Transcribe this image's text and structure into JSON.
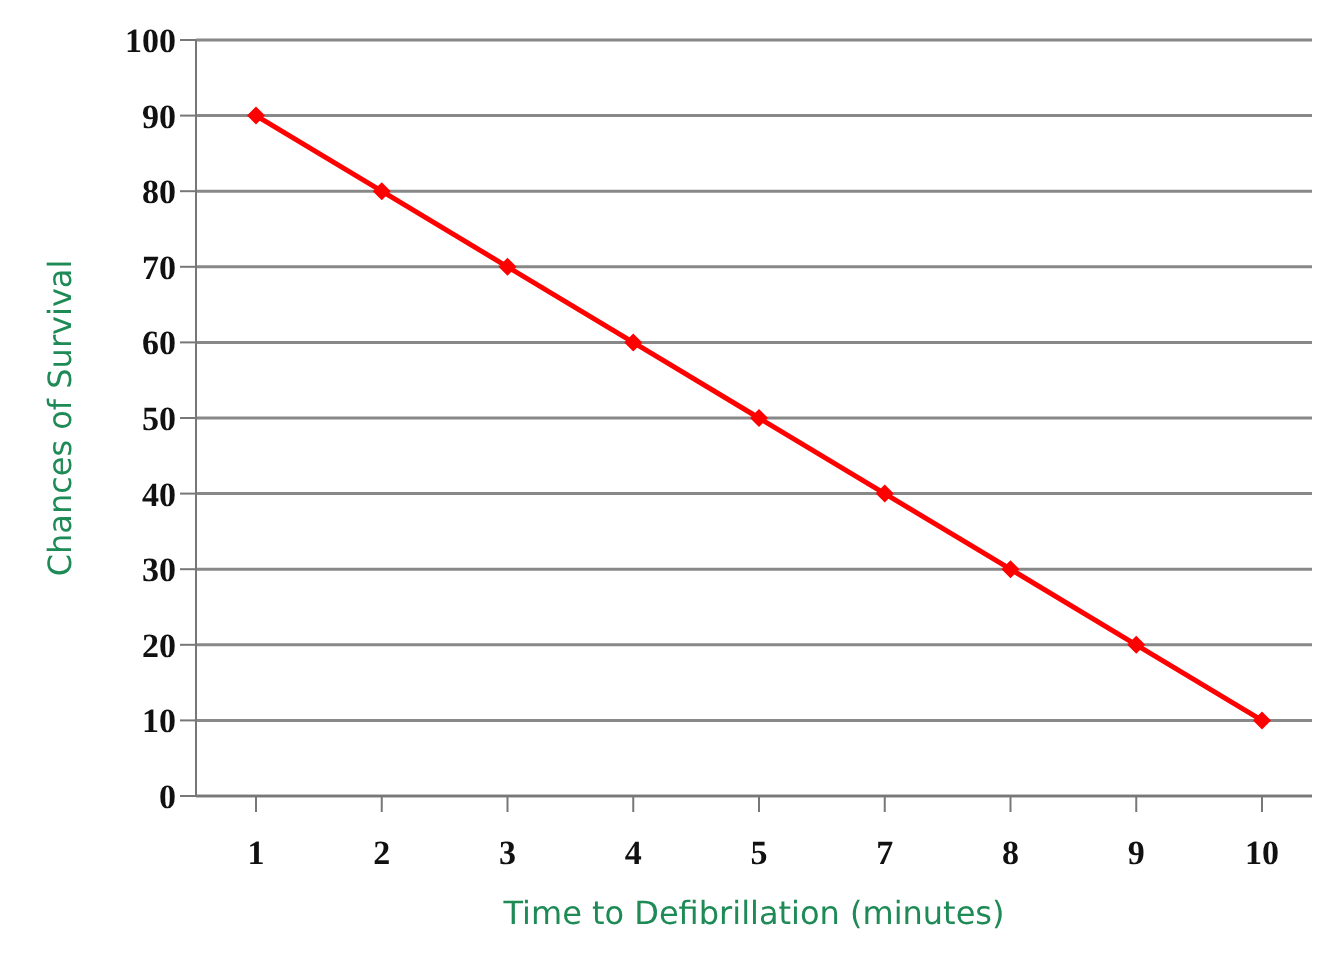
{
  "chart_data": {
    "type": "line",
    "xlabel": "Time to Defibrillation (minutes)",
    "ylabel": "Chances of Survival",
    "categories": [
      "1",
      "2",
      "3",
      "4",
      "5",
      "7",
      "8",
      "9",
      "10"
    ],
    "values": [
      90,
      80,
      70,
      60,
      50,
      40,
      30,
      20,
      10
    ],
    "color": "#ff0000",
    "ylim": [
      0,
      100
    ],
    "yticks": [
      0,
      10,
      20,
      30,
      40,
      50,
      60,
      70,
      80,
      90,
      100
    ],
    "grid": "y",
    "marker": "diamond",
    "line_style": "solid"
  }
}
